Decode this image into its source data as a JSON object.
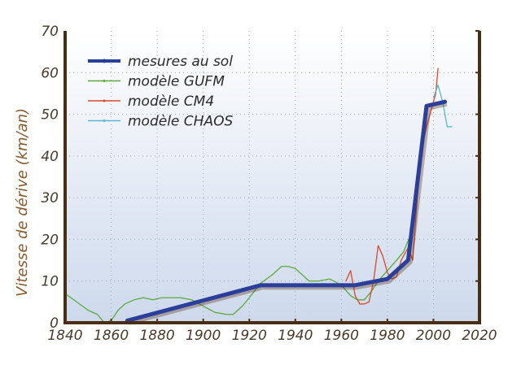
{
  "chart_data": {
    "type": "line",
    "title": "",
    "xlabel": "",
    "ylabel": "Vitesse de dérive (km/an)",
    "xlim": [
      1840,
      2020
    ],
    "ylim": [
      0,
      70
    ],
    "xticks": [
      "1840",
      "1860",
      "1880",
      "1900",
      "1920",
      "1940",
      "1960",
      "1980",
      "2000",
      "2020"
    ],
    "yticks": [
      "0",
      "10",
      "20",
      "30",
      "40",
      "50",
      "60",
      "70"
    ],
    "grid": true,
    "legend_position": "top-left",
    "series": [
      {
        "name": "mesures au sol",
        "color": "#2b3f9a",
        "x": [
          1867,
          1925,
          1966,
          1980,
          1989,
          1997,
          2005
        ],
        "y": [
          0.5,
          9,
          9,
          10.5,
          15,
          52,
          53
        ]
      },
      {
        "name": "modèle GUFM",
        "color": "#5aaa3a",
        "x": [
          1840,
          1845,
          1850,
          1854,
          1857,
          1860,
          1863,
          1866,
          1870,
          1874,
          1878,
          1882,
          1886,
          1890,
          1895,
          1900,
          1905,
          1910,
          1913,
          1917,
          1920,
          1925,
          1930,
          1934,
          1937,
          1940,
          1943,
          1946,
          1950,
          1955,
          1960,
          1964,
          1967,
          1970,
          1973,
          1976,
          1980,
          1984,
          1987,
          1990
        ],
        "y": [
          7,
          5,
          3,
          2,
          0,
          0.5,
          3,
          4.5,
          5.5,
          6,
          5.5,
          6,
          6,
          6,
          5.5,
          4,
          2.5,
          2,
          2,
          4,
          6,
          9.5,
          11.5,
          13.5,
          13.5,
          13,
          11.5,
          10,
          10,
          10.5,
          9,
          6.5,
          5.5,
          5.5,
          7.5,
          10,
          12.5,
          15,
          17,
          21
        ]
      },
      {
        "name": "modèle CM4",
        "color": "#d84a2a",
        "x": [
          1962,
          1964,
          1966,
          1968,
          1970,
          1972,
          1974,
          1976,
          1978,
          1980,
          1982,
          1984,
          1986,
          1988,
          1989,
          1991,
          1993,
          1995,
          1997,
          1999,
          2001,
          2002
        ],
        "y": [
          10,
          12.5,
          6.5,
          4.5,
          4.5,
          5,
          10,
          18.5,
          16,
          12,
          10.5,
          11,
          15,
          17,
          18,
          15,
          30,
          42,
          47,
          51,
          55,
          61
        ]
      },
      {
        "name": "modèle CHAOS",
        "color": "#5ab8d0",
        "x": [
          2000,
          2002,
          2003,
          2004,
          2005,
          2006,
          2008
        ],
        "y": [
          54,
          57,
          55,
          53,
          50,
          47,
          47
        ]
      }
    ]
  }
}
